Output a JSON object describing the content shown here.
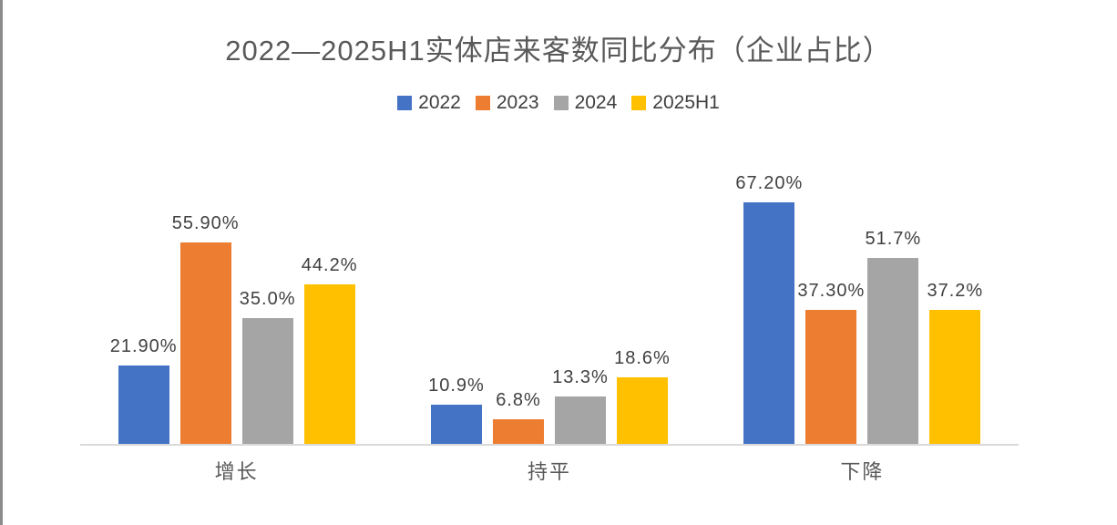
{
  "page": {
    "background": "#ffffff",
    "left_border_color": "#8c8c8c",
    "axis_line_color": "#d9d9d9",
    "title_color": "#595959",
    "value_label_color": "#404040",
    "category_label_color": "#595959"
  },
  "chart_data": {
    "type": "bar",
    "title": "2022—2025H1实体店来客数同比分布（企业占比）",
    "categories": [
      "增长",
      "持平",
      "下降"
    ],
    "series": [
      {
        "name": "2022",
        "color": "#4472C4",
        "values": [
          21.9,
          10.9,
          67.2
        ],
        "labels": [
          "21.90%",
          "10.9%",
          "67.20%"
        ]
      },
      {
        "name": "2023",
        "color": "#ED7D31",
        "values": [
          55.9,
          6.8,
          37.3
        ],
        "labels": [
          "55.90%",
          "6.8%",
          "37.30%"
        ]
      },
      {
        "name": "2024",
        "color": "#A5A5A5",
        "values": [
          35.0,
          13.3,
          51.7
        ],
        "labels": [
          "35.0%",
          "13.3%",
          "51.7%"
        ]
      },
      {
        "name": "2025H1",
        "color": "#FFC000",
        "values": [
          44.2,
          18.6,
          37.2
        ],
        "labels": [
          "44.2%",
          "18.6%",
          "37.2%"
        ]
      }
    ],
    "xlabel": "",
    "ylabel": "",
    "ylim": [
      0,
      80
    ],
    "grid": false,
    "legend_position": "top",
    "value_labels_shown": true,
    "y_axis_shown": false
  }
}
